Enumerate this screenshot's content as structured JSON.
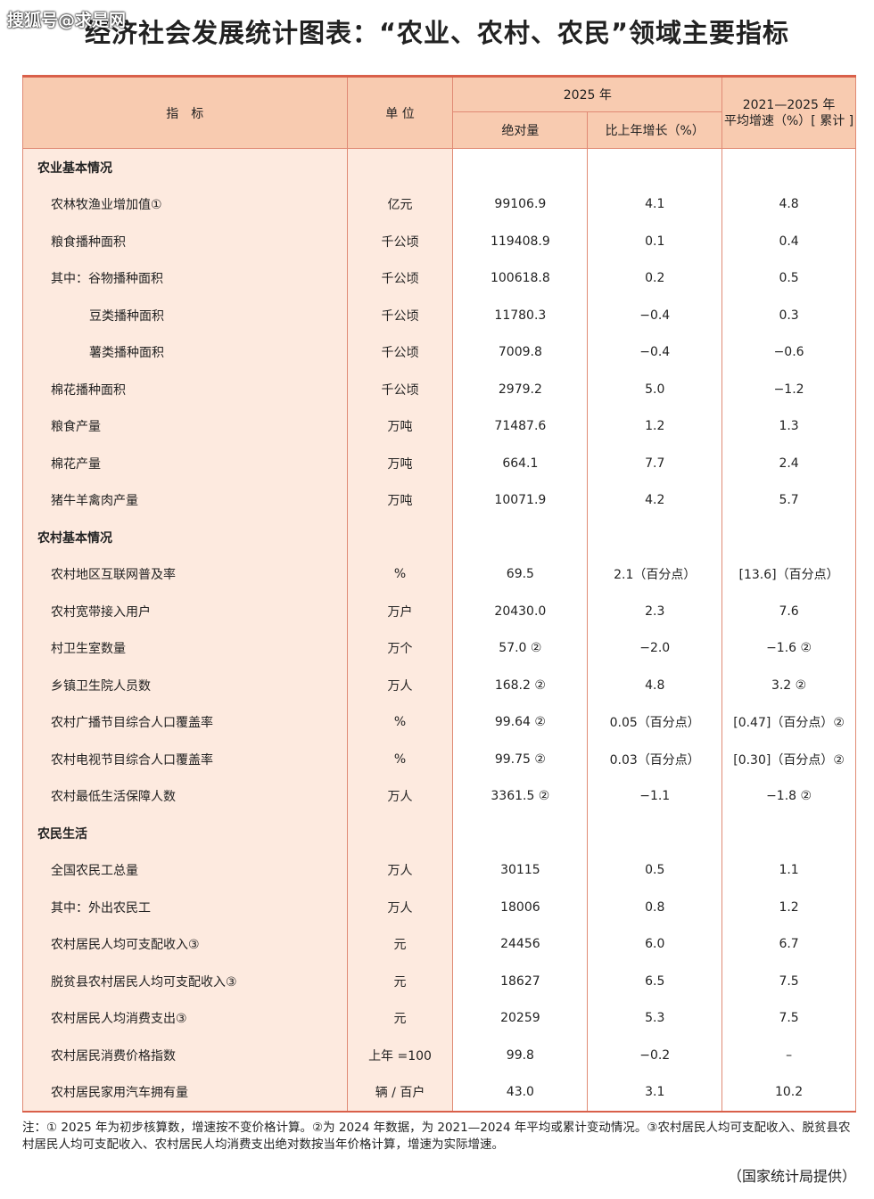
{
  "watermark": "搜狐号@求是网",
  "title": "经济社会发展统计图表：“农业、农村、农民”领域主要指标",
  "header": {
    "indicator": "指　标",
    "unit": "单 位",
    "year": "2025 年",
    "absolute": "绝对量",
    "growth": "比上年增长（%）",
    "avg": "2021—2025 年\n平均增速（%）[ 累计 ]"
  },
  "rows": [
    {
      "section": "农业基本情况"
    },
    {
      "name": "农林牧渔业增加值①",
      "unit": "亿元",
      "abs": "99106.9",
      "g": "4.1",
      "avg": "4.8",
      "lvl": 1
    },
    {
      "name": "粮食播种面积",
      "unit": "千公顷",
      "abs": "119408.9",
      "g": "0.1",
      "avg": "0.4",
      "lvl": 1
    },
    {
      "name": "其中：谷物播种面积",
      "unit": "千公顷",
      "abs": "100618.8",
      "g": "0.2",
      "avg": "0.5",
      "lvl": 1
    },
    {
      "name": "豆类播种面积",
      "unit": "千公顷",
      "abs": "11780.3",
      "g": "−0.4",
      "avg": "0.3",
      "lvl": 2
    },
    {
      "name": "薯类播种面积",
      "unit": "千公顷",
      "abs": "7009.8",
      "g": "−0.4",
      "avg": "−0.6",
      "lvl": 2
    },
    {
      "name": "棉花播种面积",
      "unit": "千公顷",
      "abs": "2979.2",
      "g": "5.0",
      "avg": "−1.2",
      "lvl": 1
    },
    {
      "name": "粮食产量",
      "unit": "万吨",
      "abs": "71487.6",
      "g": "1.2",
      "avg": "1.3",
      "lvl": 1
    },
    {
      "name": "棉花产量",
      "unit": "万吨",
      "abs": "664.1",
      "g": "7.7",
      "avg": "2.4",
      "lvl": 1
    },
    {
      "name": "猪牛羊禽肉产量",
      "unit": "万吨",
      "abs": "10071.9",
      "g": "4.2",
      "avg": "5.7",
      "lvl": 1
    },
    {
      "section": "农村基本情况"
    },
    {
      "name": "农村地区互联网普及率",
      "unit": "%",
      "abs": "69.5",
      "g": "2.1（百分点）",
      "avg": "[13.6]（百分点）",
      "lvl": 1
    },
    {
      "name": "农村宽带接入用户",
      "unit": "万户",
      "abs": "20430.0",
      "g": "2.3",
      "avg": "7.6",
      "lvl": 1
    },
    {
      "name": "村卫生室数量",
      "unit": "万个",
      "abs": "57.0 ②",
      "g": "−2.0",
      "avg": "−1.6 ②",
      "lvl": 1
    },
    {
      "name": "乡镇卫生院人员数",
      "unit": "万人",
      "abs": "168.2 ②",
      "g": "4.8",
      "avg": "3.2 ②",
      "lvl": 1
    },
    {
      "name": "农村广播节目综合人口覆盖率",
      "unit": "%",
      "abs": "99.64 ②",
      "g": "0.05（百分点）",
      "avg": "[0.47]（百分点）②",
      "lvl": 1
    },
    {
      "name": "农村电视节目综合人口覆盖率",
      "unit": "%",
      "abs": "99.75 ②",
      "g": "0.03（百分点）",
      "avg": "[0.30]（百分点）②",
      "lvl": 1
    },
    {
      "name": "农村最低生活保障人数",
      "unit": "万人",
      "abs": "3361.5 ②",
      "g": "−1.1",
      "avg": "−1.8 ②",
      "lvl": 1
    },
    {
      "section": "农民生活"
    },
    {
      "name": "全国农民工总量",
      "unit": "万人",
      "abs": "30115",
      "g": "0.5",
      "avg": "1.1",
      "lvl": 1
    },
    {
      "name": "其中：外出农民工",
      "unit": "万人",
      "abs": "18006",
      "g": "0.8",
      "avg": "1.2",
      "lvl": 1
    },
    {
      "name": "农村居民人均可支配收入③",
      "unit": "元",
      "abs": "24456",
      "g": "6.0",
      "avg": "6.7",
      "lvl": 1
    },
    {
      "name": "脱贫县农村居民人均可支配收入③",
      "unit": "元",
      "abs": "18627",
      "g": "6.5",
      "avg": "7.5",
      "lvl": 1
    },
    {
      "name": "农村居民人均消费支出③",
      "unit": "元",
      "abs": "20259",
      "g": "5.3",
      "avg": "7.5",
      "lvl": 1
    },
    {
      "name": "农村居民消费价格指数",
      "unit": "上年 =100",
      "abs": "99.8",
      "g": "−0.2",
      "avg": "–",
      "lvl": 1
    },
    {
      "name": "农村居民家用汽车拥有量",
      "unit": "辆 / 百户",
      "abs": "43.0",
      "g": "3.1",
      "avg": "10.2",
      "lvl": 1
    }
  ],
  "note": "注：① 2025 年为初步核算数，增速按不变价格计算。②为 2024 年数据，为 2021—2024 年平均或累计变动情况。③农村居民人均可支配收入、脱贫县农村居民人均可支配收入、农村居民人均消费支出绝对数按当年价格计算，增速为实际增速。",
  "source": "（国家统计局提供）",
  "colors": {
    "header_bg": "#f8cbb0",
    "label_bg": "#fdeadf",
    "border": "#d9604a"
  }
}
